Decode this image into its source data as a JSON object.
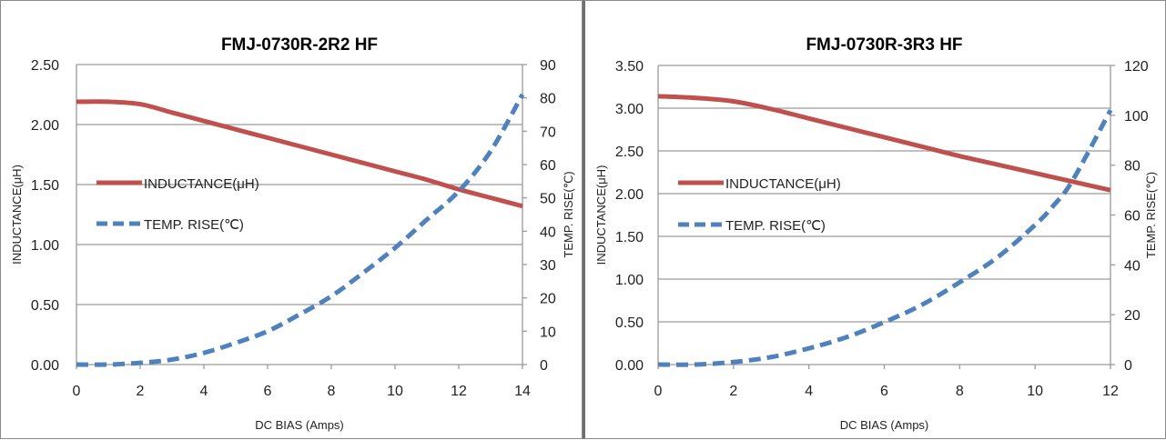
{
  "chart_data": [
    {
      "type": "line",
      "title": "FMJ-0730R-2R2 HF",
      "xlabel": "DC BIAS  (Amps)",
      "ylabel": "INDUCTANCE(μH)",
      "y2label": "TEMP.  RISE(℃)",
      "xlim": [
        0,
        14
      ],
      "ylim": [
        0,
        2.5
      ],
      "y2lim": [
        0,
        90
      ],
      "x_ticks": [
        "0",
        "2",
        "4",
        "6",
        "8",
        "10",
        "12",
        "14"
      ],
      "y_ticks": [
        "0.00",
        "0.50",
        "1.00",
        "1.50",
        "2.00",
        "2.50"
      ],
      "y2_ticks": [
        "0",
        "10",
        "20",
        "30",
        "40",
        "50",
        "60",
        "70",
        "80",
        "90"
      ],
      "grid": true,
      "series": [
        {
          "name": "INDUCTANCE(μH)",
          "axis": "left",
          "color": "#c0504d",
          "style": "solid",
          "x": [
            0,
            1,
            2,
            3,
            4,
            5,
            6,
            7,
            8,
            9,
            10,
            11,
            12,
            13,
            14
          ],
          "values": [
            2.19,
            2.19,
            2.17,
            2.1,
            2.03,
            1.96,
            1.89,
            1.82,
            1.75,
            1.68,
            1.61,
            1.54,
            1.46,
            1.39,
            1.32
          ]
        },
        {
          "name": "TEMP.  RISE(℃)",
          "axis": "right",
          "color": "#4f81bd",
          "style": "dashed",
          "x": [
            0,
            1,
            2,
            3,
            4,
            5,
            6,
            7,
            8,
            9,
            10,
            11,
            12,
            13,
            14
          ],
          "values": [
            0,
            0,
            0.5,
            1.5,
            3.5,
            6.5,
            10,
            15,
            20.5,
            27.5,
            35,
            43.5,
            52,
            64,
            81
          ]
        }
      ]
    },
    {
      "type": "line",
      "title": "FMJ-0730R-3R3 HF",
      "xlabel": "DC BIAS  (Amps)",
      "ylabel": "INDUCTANCE(μH)",
      "y2label": "TEMP.  RISE(℃)",
      "xlim": [
        0,
        12
      ],
      "ylim": [
        0,
        3.5
      ],
      "y2lim": [
        0,
        120
      ],
      "x_ticks": [
        "0",
        "2",
        "4",
        "6",
        "8",
        "10",
        "12"
      ],
      "y_ticks": [
        "0.00",
        "0.50",
        "1.00",
        "1.50",
        "2.00",
        "2.50",
        "3.00",
        "3.50"
      ],
      "y2_ticks": [
        "0",
        "20",
        "40",
        "60",
        "80",
        "100",
        "120"
      ],
      "grid": true,
      "series": [
        {
          "name": "INDUCTANCE(μH)",
          "axis": "left",
          "color": "#c0504d",
          "style": "solid",
          "x": [
            0,
            1,
            2,
            3,
            4,
            5,
            6,
            7,
            8,
            9,
            10,
            11,
            12
          ],
          "values": [
            3.14,
            3.12,
            3.08,
            2.99,
            2.88,
            2.77,
            2.66,
            2.55,
            2.44,
            2.34,
            2.24,
            2.14,
            2.04
          ]
        },
        {
          "name": "TEMP.  RISE(℃)",
          "axis": "right",
          "color": "#4f81bd",
          "style": "dashed",
          "x": [
            0,
            1,
            2,
            3,
            4,
            5,
            6,
            7,
            8,
            9,
            10,
            10.5,
            11,
            12
          ],
          "values": [
            0,
            0,
            1,
            3,
            6.5,
            11,
            17,
            24,
            33,
            43,
            56,
            64,
            74,
            102
          ]
        }
      ]
    }
  ]
}
